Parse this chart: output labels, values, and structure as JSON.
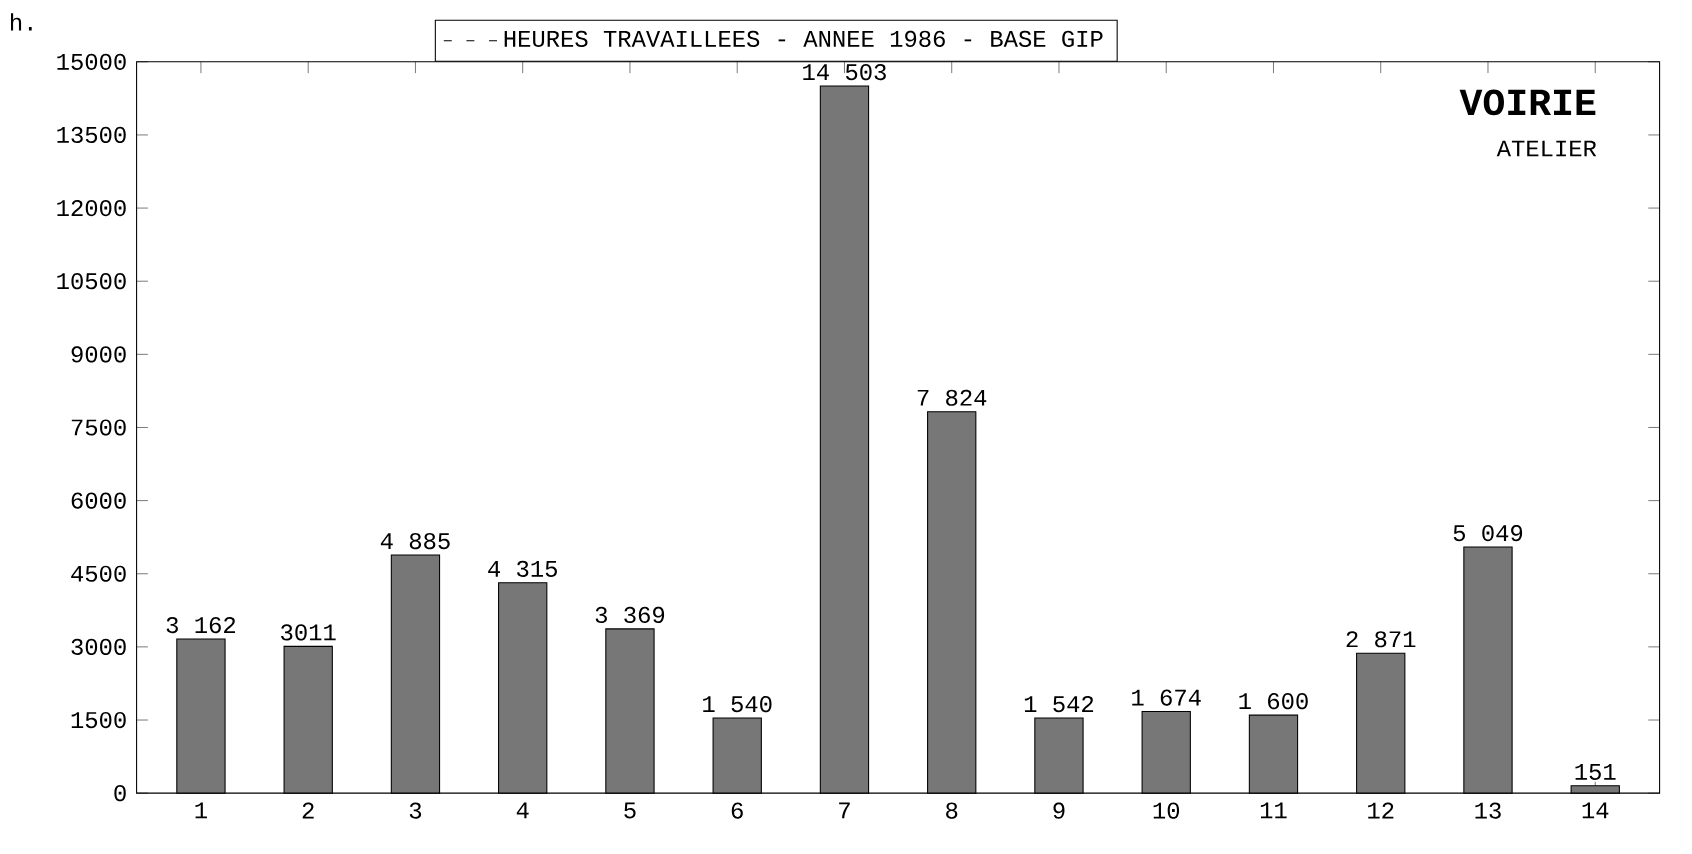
{
  "chart_data": {
    "type": "bar",
    "ylabel": "h.",
    "categories": [
      "1",
      "2",
      "3",
      "4",
      "5",
      "6",
      "7",
      "8",
      "9",
      "10",
      "11",
      "12",
      "13",
      "14"
    ],
    "series": [
      {
        "name": "HEURES TRAVAILLEES - ANNEE 1986 - BASE GIP",
        "color": "#777777",
        "values": [
          3162,
          3011,
          4885,
          4315,
          3369,
          1540,
          14503,
          7824,
          1542,
          1674,
          1600,
          2871,
          5049,
          151
        ]
      }
    ],
    "value_labels": [
      "3 162",
      "3011",
      "4 885",
      "4 315",
      "3 369",
      "1 540",
      "14 503",
      "7 824",
      "1 542",
      "1 674",
      "1 600",
      "2 871",
      "5 049",
      "151"
    ],
    "ylim": [
      0,
      15000
    ],
    "yticks": [
      0,
      1500,
      3000,
      4500,
      6000,
      7500,
      9000,
      10500,
      12000,
      13500,
      15000
    ],
    "annotations": [
      "VOIRIE",
      "ATELIER"
    ],
    "legend": "top",
    "grid": false
  }
}
